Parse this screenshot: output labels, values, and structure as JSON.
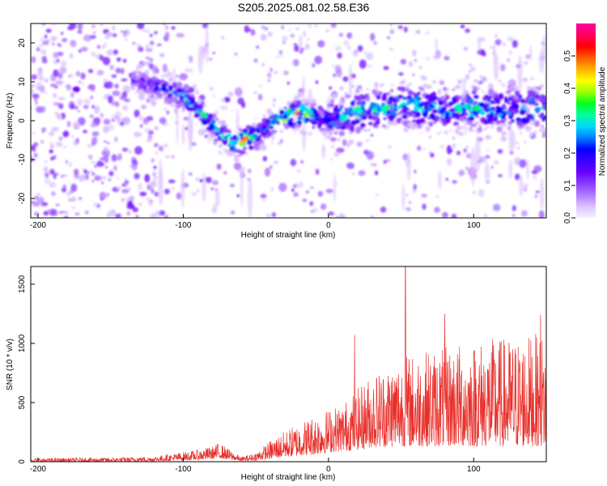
{
  "figure": {
    "title": "S205.2025.081.02.58.E36"
  },
  "colors": {
    "background": "#ffffff",
    "axis": "#000000",
    "snr_line": "#e8302b",
    "colorscale": [
      "#f6f2ff",
      "#dcc2ff",
      "#b27cff",
      "#8a3cff",
      "#6a00ff",
      "#3b00ff",
      "#0000ff",
      "#0080ff",
      "#00d8ff",
      "#00ff9c",
      "#00ff20",
      "#9cff00",
      "#ffff00",
      "#ffb000",
      "#ff5a00",
      "#ff0000",
      "#ff0060",
      "#ff00a0"
    ]
  },
  "chart_data": [
    {
      "type": "heatmap",
      "description_free": true,
      "xlabel": "Height of straight line (km)",
      "ylabel": "Frequency (Hz)",
      "xlim": [
        -205,
        150
      ],
      "ylim": [
        -25,
        25
      ],
      "xticks": [
        -200,
        -100,
        0,
        100
      ],
      "xtick_labels": [
        "-200",
        "-100",
        "0",
        "100"
      ],
      "yticks": [
        -20,
        -10,
        0,
        10,
        20
      ],
      "ytick_labels": [
        "-20",
        "-10",
        "0",
        "10",
        "20"
      ],
      "colorbar": {
        "label": "Normalized spectral amplitude",
        "range": [
          0,
          0.6
        ],
        "ticks": [
          0,
          0.1,
          0.2,
          0.3,
          0.4,
          0.5
        ],
        "tick_labels": [
          "0.0",
          "0.1",
          "0.2",
          "0.3",
          "0.4",
          "0.5"
        ]
      },
      "ridge": {
        "x": [
          -135,
          -120,
          -105,
          -95,
          -85,
          -75,
          -65,
          -58,
          -50,
          -40,
          -30,
          -20,
          -10,
          0,
          20,
          50,
          80,
          110,
          150
        ],
        "frequency": [
          10,
          9,
          7,
          5,
          1,
          -3,
          -6,
          -5,
          -4,
          -1,
          1,
          2,
          1,
          0,
          2,
          4,
          3,
          3,
          3
        ],
        "peak_amplitude": [
          0.15,
          0.2,
          0.25,
          0.3,
          0.32,
          0.3,
          0.35,
          0.5,
          0.3,
          0.3,
          0.45,
          0.5,
          0.3,
          0.25,
          0.3,
          0.3,
          0.28,
          0.3,
          0.3
        ]
      }
    },
    {
      "type": "line",
      "xlabel": "Height of straight line (km)",
      "ylabel": "SNR (10 * v/v)",
      "xlim": [
        -205,
        150
      ],
      "ylim": [
        0,
        1650
      ],
      "xticks": [
        -200,
        -100,
        0,
        100
      ],
      "xtick_labels": [
        "-200",
        "-100",
        "0",
        "100"
      ],
      "yticks": [
        0,
        500,
        1000,
        1500
      ],
      "ytick_labels": [
        "0",
        "500",
        "1000",
        "1500"
      ],
      "envelope": {
        "x": [
          -205,
          -150,
          -120,
          -90,
          -80,
          -75,
          -70,
          -60,
          -50,
          -40,
          -30,
          -20,
          -10,
          0,
          10,
          20,
          30,
          50,
          70,
          90,
          110,
          130,
          150
        ],
        "upper": [
          30,
          35,
          45,
          100,
          130,
          160,
          120,
          40,
          80,
          180,
          260,
          330,
          400,
          450,
          500,
          620,
          750,
          900,
          950,
          1000,
          1050,
          1050,
          1100
        ],
        "lower": [
          0,
          2,
          5,
          15,
          25,
          30,
          20,
          5,
          10,
          25,
          40,
          50,
          60,
          80,
          90,
          100,
          120,
          130,
          130,
          130,
          130,
          130,
          130
        ]
      },
      "peaks": [
        {
          "x": 53,
          "y": 1650
        },
        {
          "x": 146,
          "y": 1240
        },
        {
          "x": 18,
          "y": 1070
        },
        {
          "x": 80,
          "y": 1250
        }
      ]
    }
  ]
}
